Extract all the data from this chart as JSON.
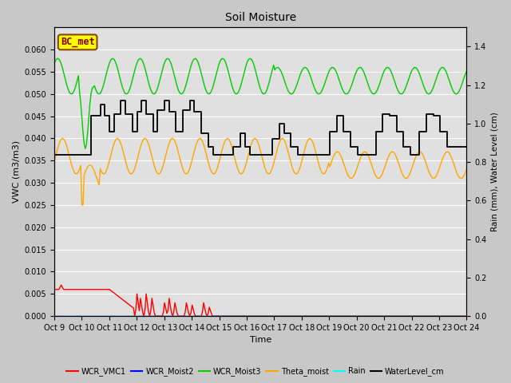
{
  "title": "Soil Moisture",
  "xlabel": "Time",
  "ylabel_left": "VWC (m3/m3)",
  "ylabel_right": "Rain (mm), Water Level (cm)",
  "xlim": [
    0,
    15
  ],
  "ylim_left": [
    0.0,
    0.065
  ],
  "ylim_right": [
    0.0,
    1.5
  ],
  "fig_bg_color": "#c8c8c8",
  "plot_bg_color": "#e0e0e0",
  "annotation_text": "BC_met",
  "annotation_color": "#8B0000",
  "annotation_bg": "#FFFF00",
  "annotation_edge": "#8B4513",
  "xtick_labels": [
    "Oct 9",
    "Oct 10",
    "Oct 11",
    "Oct 12",
    "Oct 13",
    "Oct 14",
    "Oct 15",
    "Oct 16",
    "Oct 17",
    "Oct 18",
    "Oct 19",
    "Oct 20",
    "Oct 21",
    "Oct 22",
    "Oct 23",
    "Oct 24"
  ],
  "yticks_left": [
    0.0,
    0.005,
    0.01,
    0.015,
    0.02,
    0.025,
    0.03,
    0.035,
    0.04,
    0.045,
    0.05,
    0.055,
    0.06
  ],
  "yticks_right": [
    0.0,
    0.2,
    0.4,
    0.6,
    0.8,
    1.0,
    1.2,
    1.4
  ],
  "legend_entries": [
    {
      "label": "WCR_VMC1",
      "color": "#ff0000",
      "lw": 1.5
    },
    {
      "label": "WCR_Moist2",
      "color": "#0000ff",
      "lw": 1.5
    },
    {
      "label": "WCR_Moist3",
      "color": "#00cc00",
      "lw": 1.5
    },
    {
      "label": "Theta_moist",
      "color": "#ffa500",
      "lw": 1.5
    },
    {
      "label": "Rain",
      "color": "#00ffff",
      "lw": 1.5
    },
    {
      "label": "WaterLevel_cm",
      "color": "#000000",
      "lw": 1.5
    }
  ]
}
